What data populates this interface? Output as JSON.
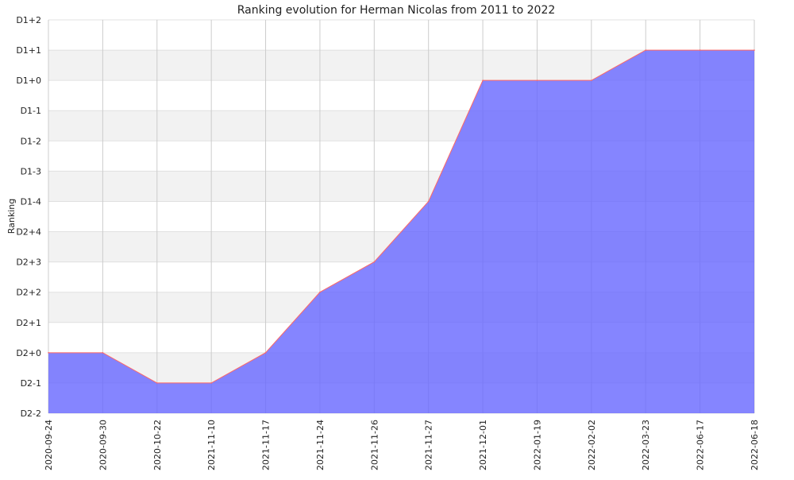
{
  "chart_data": {
    "type": "area",
    "title": "Ranking evolution for Herman Nicolas from 2011 to 2022",
    "xlabel": "",
    "ylabel": "Ranking",
    "x": [
      "2020-09-24",
      "2020-09-30",
      "2020-10-22",
      "2021-11-10",
      "2021-11-17",
      "2021-11-24",
      "2021-11-26",
      "2021-11-27",
      "2021-12-01",
      "2022-01-19",
      "2022-02-02",
      "2022-03-23",
      "2022-06-17",
      "2022-06-18"
    ],
    "y_levels": [
      "D2-2",
      "D2-1",
      "D2+0",
      "D2+1",
      "D2+2",
      "D2+3",
      "D2+4",
      "D1-4",
      "D1-3",
      "D1-2",
      "D1-1",
      "D1+0",
      "D1+1",
      "D1+2"
    ],
    "series": [
      {
        "values": [
          "D2+0",
          "D2+0",
          "D2-1",
          "D2-1",
          "D2+0",
          "D2+2",
          "D2+3",
          "D1-4",
          "D1+0",
          "D1+0",
          "D1+0",
          "D1+1",
          "D1+1",
          "D1+1"
        ]
      }
    ],
    "grid": true,
    "legend": "none",
    "colors": {
      "fill": "#6666ff",
      "fill_opacity": 0.8,
      "line": "#ff6666",
      "band": "#f2f2f2",
      "grid": "#cccccc"
    }
  }
}
